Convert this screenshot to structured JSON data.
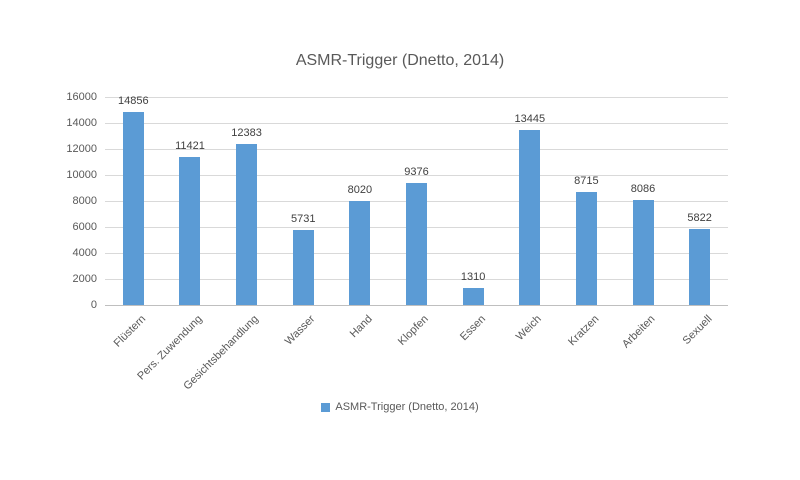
{
  "chart_data": {
    "type": "bar",
    "title": "ASMR-Trigger (Dnetto, 2014)",
    "categories": [
      "Flüstern",
      "Pers. Zuwendung",
      "Gesichtsbehandlung",
      "Wasser",
      "Hand",
      "Klopfen",
      "Essen",
      "Weich",
      "Kratzen",
      "Arbeiten",
      "Sexuell"
    ],
    "values": [
      14856,
      11421,
      12383,
      5731,
      8020,
      9376,
      1310,
      13445,
      8715,
      8086,
      5822
    ],
    "xlabel": "",
    "ylabel": "",
    "ylim": [
      0,
      16000
    ],
    "yticks": [
      0,
      2000,
      4000,
      6000,
      8000,
      10000,
      12000,
      14000,
      16000
    ],
    "grid": true,
    "data_labels": true,
    "legend_label": "ASMR-Trigger (Dnetto, 2014)",
    "legend_position": "bottom",
    "bar_color": "#5B9BD5",
    "gridline_color": "#D9D9D9",
    "axis_line_color": "#BFBFBF",
    "tick_text_color": "#595959",
    "data_label_color": "#404040",
    "title_color": "#595959"
  }
}
